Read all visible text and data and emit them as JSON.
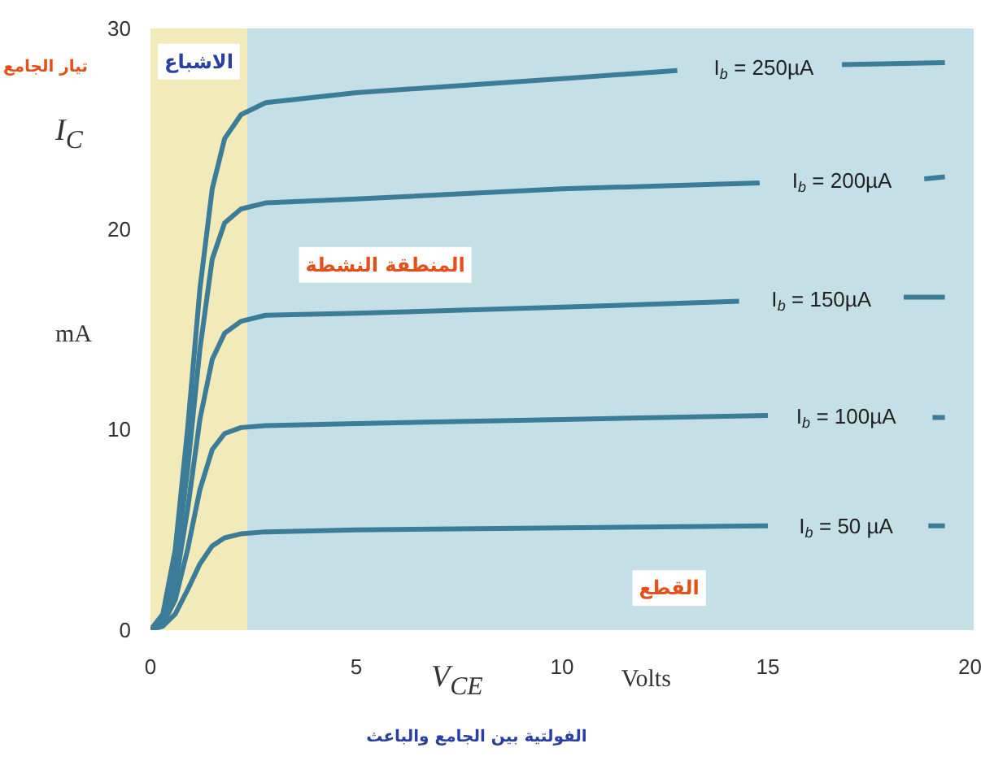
{
  "chart_data": {
    "type": "line",
    "xlabel": "V$_{CE}$ Volts",
    "ylabel": "I$_{C}$",
    "xlim": [
      0,
      20
    ],
    "ylim": [
      0,
      30
    ],
    "xticks": [
      0,
      5,
      10,
      15,
      20
    ],
    "yticks": [
      0,
      10,
      20,
      30
    ],
    "grid": true,
    "line_style": "solid",
    "series": [
      {
        "name": "I$_{b}$ = 250µA",
        "color": "#3b7c99",
        "x": [
          0,
          0.3,
          0.6,
          0.9,
          1.2,
          1.5,
          1.8,
          2.2,
          2.8,
          5,
          10,
          12.8,
          14.9,
          16.8,
          19.3
        ],
        "values": [
          0,
          0.8,
          4,
          10,
          17,
          22,
          24.5,
          25.7,
          26.3,
          26.8,
          27.5,
          27.9,
          null,
          28.2,
          28.3
        ]
      },
      {
        "name": "I$_{b}$ = 200µA",
        "color": "#3b7c99",
        "x": [
          0,
          0.3,
          0.6,
          0.9,
          1.2,
          1.5,
          1.8,
          2.2,
          2.8,
          5,
          10,
          14.8,
          16.8,
          18.8,
          19.3
        ],
        "values": [
          0,
          0.6,
          3,
          8,
          14,
          18.5,
          20.3,
          21,
          21.3,
          21.5,
          22,
          22.3,
          null,
          22.5,
          22.6
        ]
      },
      {
        "name": "I$_{b}$ = 150µA",
        "color": "#3b7c99",
        "x": [
          0,
          0.3,
          0.6,
          0.9,
          1.2,
          1.5,
          1.8,
          2.2,
          2.8,
          5,
          10,
          14.3,
          16.3,
          18.3,
          19.3
        ],
        "values": [
          0,
          0.5,
          2.2,
          6,
          10.5,
          13.5,
          14.8,
          15.4,
          15.7,
          15.8,
          16.1,
          16.4,
          null,
          16.6,
          16.6
        ]
      },
      {
        "name": "I$_{b}$ = 100µA",
        "color": "#3b7c99",
        "x": [
          0,
          0.3,
          0.6,
          0.9,
          1.2,
          1.5,
          1.8,
          2.2,
          2.8,
          5,
          10,
          15,
          16.9,
          19,
          19.3
        ],
        "values": [
          0,
          0.3,
          1.5,
          4,
          7,
          9,
          9.8,
          10.1,
          10.2,
          10.3,
          10.5,
          10.7,
          null,
          10.6,
          10.6
        ]
      },
      {
        "name": "I$_{b}$ = 50 µA",
        "color": "#3b7c99",
        "x": [
          0,
          0.3,
          0.6,
          0.9,
          1.2,
          1.5,
          1.8,
          2.2,
          2.8,
          5,
          10,
          15,
          16.9,
          18.9,
          19.3
        ],
        "values": [
          0,
          0.2,
          0.8,
          2,
          3.3,
          4.2,
          4.6,
          4.8,
          4.9,
          5,
          5.1,
          5.2,
          null,
          5.2,
          5.2
        ]
      }
    ],
    "bands": [
      {
        "axis": "x",
        "from": 0,
        "to": 2.35,
        "color": "#f2ebb9",
        "label": "الاشباع"
      },
      {
        "axis": "x",
        "from": 2.35,
        "to": 20,
        "color": "#c4e0e6",
        "label": "المنطقة النشطة"
      }
    ],
    "annotations": [
      "القطع",
      "تيار الجامع",
      "الفولتية بين الجامع والباعث",
      "mA"
    ]
  }
}
